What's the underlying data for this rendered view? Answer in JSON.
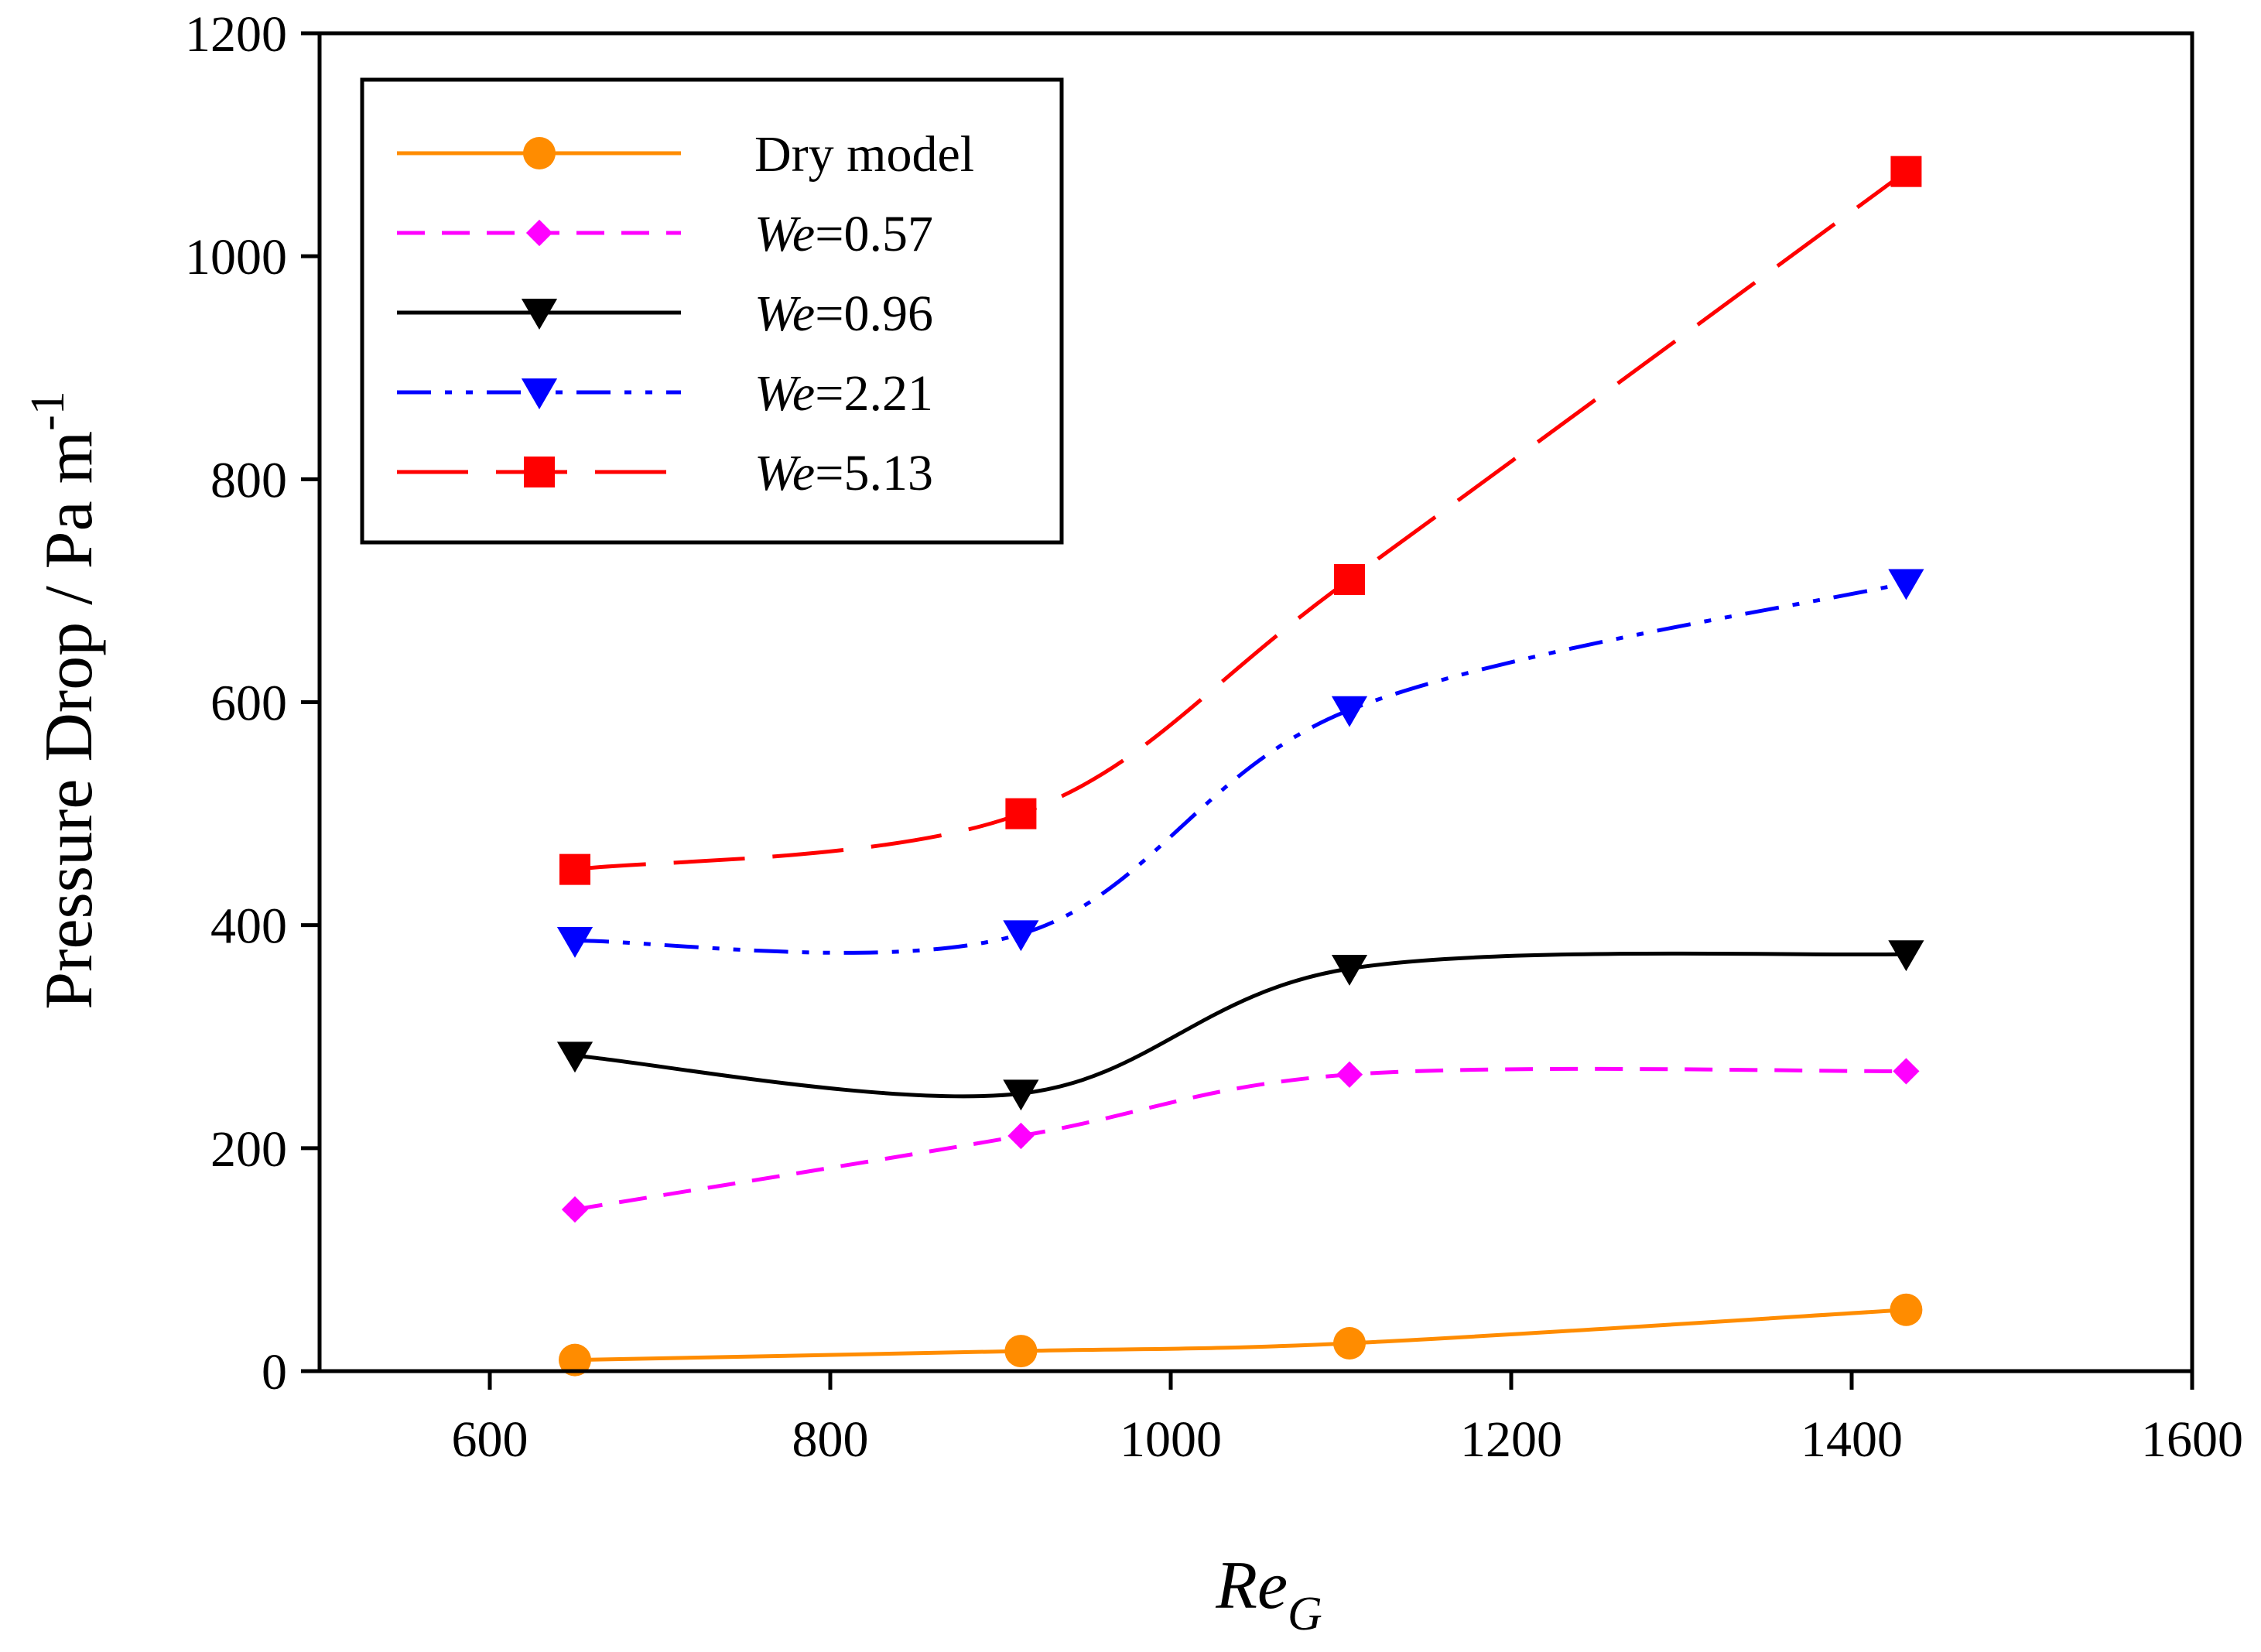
{
  "chart_data": {
    "type": "line",
    "title": "",
    "xlabel": {
      "main": "Re",
      "sub": "G"
    },
    "ylabel": {
      "main": "Pressure Drop / Pa m",
      "sup": "-1"
    },
    "xlim": [
      500,
      1600
    ],
    "ylim": [
      0,
      1200
    ],
    "xticks": [
      600,
      800,
      1000,
      1200,
      1400,
      1600
    ],
    "yticks": [
      0,
      200,
      400,
      600,
      800,
      1000,
      1200
    ],
    "xtick_labels": [
      "600",
      "800",
      "1000",
      "1200",
      "1400",
      "1600"
    ],
    "ytick_labels": [
      "0",
      "200",
      "400",
      "600",
      "800",
      "1000",
      "1200"
    ],
    "grid": false,
    "legend_position": "top-left",
    "x": [
      650,
      912,
      1105,
      1432
    ],
    "series": [
      {
        "name": "Dry model",
        "prefix": "",
        "suffix": "Dry model",
        "values": [
          10,
          18,
          25,
          55
        ],
        "color": "#ff8c00",
        "marker": "circle",
        "dash": "solid"
      },
      {
        "name": "We=0.57",
        "prefix": "We",
        "suffix": "=0.57",
        "values": [
          145,
          211,
          266,
          269
        ],
        "color": "#ff00ff",
        "marker": "diamond",
        "dash": "dash"
      },
      {
        "name": "We=0.96",
        "prefix": "We",
        "suffix": "=0.96",
        "values": [
          283,
          249,
          361,
          374
        ],
        "color": "#000000",
        "marker": "triangle-down",
        "dash": "solid"
      },
      {
        "name": "We=2.21",
        "prefix": "We",
        "suffix": "=2.21",
        "values": [
          386,
          392,
          593,
          707
        ],
        "color": "#0000ff",
        "marker": "triangle-down",
        "dash": "dashdotdot"
      },
      {
        "name": "We=5.13",
        "prefix": "We",
        "suffix": "=5.13",
        "values": [
          450,
          500,
          710,
          1076
        ],
        "color": "#ff0000",
        "marker": "square",
        "dash": "longdash"
      }
    ]
  }
}
